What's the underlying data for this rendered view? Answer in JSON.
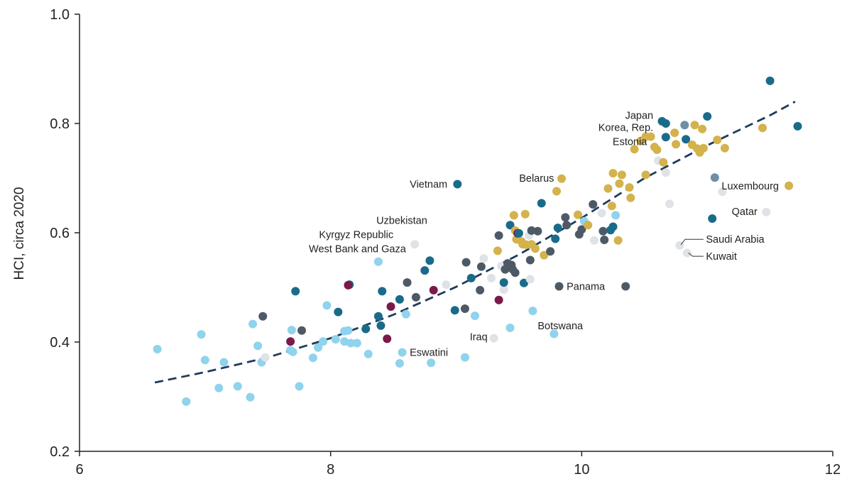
{
  "chart_data": {
    "type": "scatter",
    "ylabel": "HCI, circa 2020",
    "xlabel": "",
    "xlim": [
      6,
      12
    ],
    "ylim": [
      0.2,
      1.0
    ],
    "x_ticks": [
      "6",
      "8",
      "10",
      "12"
    ],
    "y_ticks": [
      "0.2",
      "0.4",
      "0.6",
      "0.8",
      "1.0"
    ],
    "grid": false,
    "colors": {
      "teal": "#1a6b8a",
      "gold": "#d4b24c",
      "lightblue": "#8fd3ec",
      "slate": "#4d5a66",
      "maroon": "#7a1a4a",
      "lightgray": "#dfe3e8",
      "bluegray": "#6f8fa6",
      "trend": "#1f3b5c"
    },
    "trend_line": {
      "style": "dashed",
      "points": [
        [
          6.6,
          0.326
        ],
        [
          7.0,
          0.345
        ],
        [
          7.5,
          0.372
        ],
        [
          8.0,
          0.407
        ],
        [
          8.5,
          0.45
        ],
        [
          9.0,
          0.501
        ],
        [
          9.5,
          0.56
        ],
        [
          10.0,
          0.627
        ],
        [
          10.5,
          0.7
        ],
        [
          11.0,
          0.76
        ],
        [
          11.5,
          0.815
        ],
        [
          11.7,
          0.84
        ]
      ]
    },
    "points": [
      {
        "x": 6.62,
        "y": 0.387,
        "c": "lightblue"
      },
      {
        "x": 6.85,
        "y": 0.291,
        "c": "lightblue"
      },
      {
        "x": 6.97,
        "y": 0.414,
        "c": "lightblue"
      },
      {
        "x": 7.0,
        "y": 0.367,
        "c": "lightblue"
      },
      {
        "x": 7.11,
        "y": 0.316,
        "c": "lightblue"
      },
      {
        "x": 7.15,
        "y": 0.363,
        "c": "lightblue"
      },
      {
        "x": 7.26,
        "y": 0.319,
        "c": "lightblue"
      },
      {
        "x": 7.36,
        "y": 0.299,
        "c": "lightblue"
      },
      {
        "x": 7.38,
        "y": 0.433,
        "c": "lightblue"
      },
      {
        "x": 7.42,
        "y": 0.393,
        "c": "lightblue"
      },
      {
        "x": 7.45,
        "y": 0.363,
        "c": "lightblue"
      },
      {
        "x": 7.46,
        "y": 0.447,
        "c": "slate"
      },
      {
        "x": 7.48,
        "y": 0.372,
        "c": "lightgray"
      },
      {
        "x": 7.68,
        "y": 0.385,
        "c": "lightblue"
      },
      {
        "x": 7.69,
        "y": 0.422,
        "c": "lightblue"
      },
      {
        "x": 7.7,
        "y": 0.382,
        "c": "lightblue"
      },
      {
        "x": 7.68,
        "y": 0.401,
        "c": "maroon"
      },
      {
        "x": 7.72,
        "y": 0.493,
        "c": "teal"
      },
      {
        "x": 7.75,
        "y": 0.319,
        "c": "lightblue"
      },
      {
        "x": 7.77,
        "y": 0.421,
        "c": "slate"
      },
      {
        "x": 7.86,
        "y": 0.371,
        "c": "lightblue"
      },
      {
        "x": 7.9,
        "y": 0.39,
        "c": "lightblue"
      },
      {
        "x": 7.94,
        "y": 0.401,
        "c": "lightblue"
      },
      {
        "x": 7.97,
        "y": 0.467,
        "c": "lightblue"
      },
      {
        "x": 8.04,
        "y": 0.405,
        "c": "lightblue"
      },
      {
        "x": 8.06,
        "y": 0.455,
        "c": "teal"
      },
      {
        "x": 8.11,
        "y": 0.401,
        "c": "lightblue"
      },
      {
        "x": 8.11,
        "y": 0.42,
        "c": "lightblue"
      },
      {
        "x": 8.14,
        "y": 0.421,
        "c": "lightblue"
      },
      {
        "x": 8.16,
        "y": 0.398,
        "c": "lightblue"
      },
      {
        "x": 8.15,
        "y": 0.505,
        "c": "teal"
      },
      {
        "x": 8.14,
        "y": 0.504,
        "c": "maroon"
      },
      {
        "x": 8.21,
        "y": 0.398,
        "c": "lightblue"
      },
      {
        "x": 8.28,
        "y": 0.424,
        "c": "teal"
      },
      {
        "x": 8.3,
        "y": 0.378,
        "c": "lightblue"
      },
      {
        "x": 8.38,
        "y": 0.447,
        "c": "teal"
      },
      {
        "x": 8.38,
        "y": 0.547,
        "c": "lightblue"
      },
      {
        "x": 8.4,
        "y": 0.43,
        "c": "teal"
      },
      {
        "x": 8.41,
        "y": 0.493,
        "c": "teal"
      },
      {
        "x": 8.45,
        "y": 0.406,
        "c": "maroon"
      },
      {
        "x": 8.48,
        "y": 0.465,
        "c": "maroon"
      },
      {
        "x": 8.55,
        "y": 0.361,
        "c": "lightblue"
      },
      {
        "x": 8.55,
        "y": 0.478,
        "c": "teal"
      },
      {
        "x": 8.57,
        "y": 0.381,
        "c": "lightblue"
      },
      {
        "x": 8.6,
        "y": 0.451,
        "c": "lightblue"
      },
      {
        "x": 8.61,
        "y": 0.509,
        "c": "slate"
      },
      {
        "x": 8.67,
        "y": 0.579,
        "c": "lightgray"
      },
      {
        "x": 8.68,
        "y": 0.482,
        "c": "slate"
      },
      {
        "x": 8.75,
        "y": 0.531,
        "c": "teal"
      },
      {
        "x": 8.79,
        "y": 0.549,
        "c": "teal"
      },
      {
        "x": 8.8,
        "y": 0.362,
        "c": "lightblue"
      },
      {
        "x": 8.82,
        "y": 0.495,
        "c": "maroon"
      },
      {
        "x": 8.92,
        "y": 0.505,
        "c": "lightgray"
      },
      {
        "x": 8.99,
        "y": 0.458,
        "c": "teal"
      },
      {
        "x": 9.01,
        "y": 0.689,
        "c": "teal"
      },
      {
        "x": 9.07,
        "y": 0.461,
        "c": "slate"
      },
      {
        "x": 9.07,
        "y": 0.372,
        "c": "lightblue"
      },
      {
        "x": 9.08,
        "y": 0.546,
        "c": "slate"
      },
      {
        "x": 9.12,
        "y": 0.517,
        "c": "teal"
      },
      {
        "x": 9.15,
        "y": 0.448,
        "c": "lightblue"
      },
      {
        "x": 9.19,
        "y": 0.495,
        "c": "slate"
      },
      {
        "x": 9.2,
        "y": 0.538,
        "c": "slate"
      },
      {
        "x": 9.22,
        "y": 0.553,
        "c": "lightgray"
      },
      {
        "x": 9.28,
        "y": 0.517,
        "c": "lightgray"
      },
      {
        "x": 9.3,
        "y": 0.407,
        "c": "lightgray"
      },
      {
        "x": 9.34,
        "y": 0.595,
        "c": "slate"
      },
      {
        "x": 9.33,
        "y": 0.567,
        "c": "gold"
      },
      {
        "x": 9.36,
        "y": 0.539,
        "c": "lightgray"
      },
      {
        "x": 9.34,
        "y": 0.477,
        "c": "maroon"
      },
      {
        "x": 9.38,
        "y": 0.496,
        "c": "lightgray"
      },
      {
        "x": 9.38,
        "y": 0.509,
        "c": "teal"
      },
      {
        "x": 9.39,
        "y": 0.533,
        "c": "slate"
      },
      {
        "x": 9.41,
        "y": 0.544,
        "c": "slate"
      },
      {
        "x": 9.43,
        "y": 0.614,
        "c": "teal"
      },
      {
        "x": 9.43,
        "y": 0.426,
        "c": "lightblue"
      },
      {
        "x": 9.44,
        "y": 0.541,
        "c": "slate"
      },
      {
        "x": 9.45,
        "y": 0.533,
        "c": "slate"
      },
      {
        "x": 9.47,
        "y": 0.527,
        "c": "slate"
      },
      {
        "x": 9.46,
        "y": 0.632,
        "c": "gold"
      },
      {
        "x": 9.47,
        "y": 0.604,
        "c": "gold"
      },
      {
        "x": 9.48,
        "y": 0.588,
        "c": "gold"
      },
      {
        "x": 9.49,
        "y": 0.599,
        "c": "maroon"
      },
      {
        "x": 9.5,
        "y": 0.599,
        "c": "teal"
      },
      {
        "x": 9.52,
        "y": 0.584,
        "c": "gold"
      },
      {
        "x": 9.53,
        "y": 0.579,
        "c": "gold"
      },
      {
        "x": 9.54,
        "y": 0.508,
        "c": "teal"
      },
      {
        "x": 9.55,
        "y": 0.634,
        "c": "gold"
      },
      {
        "x": 9.56,
        "y": 0.578,
        "c": "gold"
      },
      {
        "x": 9.58,
        "y": 0.595,
        "c": "lightgray"
      },
      {
        "x": 9.59,
        "y": 0.55,
        "c": "slate"
      },
      {
        "x": 9.59,
        "y": 0.515,
        "c": "lightgray"
      },
      {
        "x": 9.6,
        "y": 0.579,
        "c": "gold"
      },
      {
        "x": 9.6,
        "y": 0.604,
        "c": "slate"
      },
      {
        "x": 9.61,
        "y": 0.457,
        "c": "lightblue"
      },
      {
        "x": 9.63,
        "y": 0.571,
        "c": "gold"
      },
      {
        "x": 9.65,
        "y": 0.603,
        "c": "slate"
      },
      {
        "x": 9.68,
        "y": 0.654,
        "c": "teal"
      },
      {
        "x": 9.7,
        "y": 0.559,
        "c": "gold"
      },
      {
        "x": 9.75,
        "y": 0.566,
        "c": "slate"
      },
      {
        "x": 9.78,
        "y": 0.415,
        "c": "lightblue"
      },
      {
        "x": 9.79,
        "y": 0.589,
        "c": "teal"
      },
      {
        "x": 9.8,
        "y": 0.676,
        "c": "gold"
      },
      {
        "x": 9.81,
        "y": 0.609,
        "c": "teal"
      },
      {
        "x": 9.82,
        "y": 0.502,
        "c": "slate"
      },
      {
        "x": 9.84,
        "y": 0.699,
        "c": "gold"
      },
      {
        "x": 9.87,
        "y": 0.628,
        "c": "slate"
      },
      {
        "x": 9.88,
        "y": 0.614,
        "c": "slate"
      },
      {
        "x": 9.97,
        "y": 0.633,
        "c": "gold"
      },
      {
        "x": 9.98,
        "y": 0.597,
        "c": "slate"
      },
      {
        "x": 10.0,
        "y": 0.606,
        "c": "slate"
      },
      {
        "x": 10.02,
        "y": 0.621,
        "c": "lightblue"
      },
      {
        "x": 10.05,
        "y": 0.614,
        "c": "gold"
      },
      {
        "x": 10.09,
        "y": 0.652,
        "c": "slate"
      },
      {
        "x": 10.1,
        "y": 0.586,
        "c": "lightgray"
      },
      {
        "x": 10.16,
        "y": 0.636,
        "c": "lightgray"
      },
      {
        "x": 10.17,
        "y": 0.603,
        "c": "slate"
      },
      {
        "x": 10.18,
        "y": 0.587,
        "c": "slate"
      },
      {
        "x": 10.21,
        "y": 0.681,
        "c": "gold"
      },
      {
        "x": 10.23,
        "y": 0.605,
        "c": "teal"
      },
      {
        "x": 10.24,
        "y": 0.649,
        "c": "gold"
      },
      {
        "x": 10.25,
        "y": 0.709,
        "c": "gold"
      },
      {
        "x": 10.25,
        "y": 0.611,
        "c": "teal"
      },
      {
        "x": 10.27,
        "y": 0.632,
        "c": "lightblue"
      },
      {
        "x": 10.29,
        "y": 0.586,
        "c": "gold"
      },
      {
        "x": 10.3,
        "y": 0.69,
        "c": "gold"
      },
      {
        "x": 10.32,
        "y": 0.706,
        "c": "gold"
      },
      {
        "x": 10.35,
        "y": 0.502,
        "c": "slate"
      },
      {
        "x": 10.38,
        "y": 0.683,
        "c": "gold"
      },
      {
        "x": 10.39,
        "y": 0.664,
        "c": "gold"
      },
      {
        "x": 10.42,
        "y": 0.753,
        "c": "gold"
      },
      {
        "x": 10.47,
        "y": 0.768,
        "c": "gold"
      },
      {
        "x": 10.51,
        "y": 0.776,
        "c": "gold"
      },
      {
        "x": 10.51,
        "y": 0.706,
        "c": "gold"
      },
      {
        "x": 10.55,
        "y": 0.776,
        "c": "gold"
      },
      {
        "x": 10.58,
        "y": 0.757,
        "c": "gold"
      },
      {
        "x": 10.6,
        "y": 0.752,
        "c": "gold"
      },
      {
        "x": 10.61,
        "y": 0.732,
        "c": "lightgray"
      },
      {
        "x": 10.64,
        "y": 0.804,
        "c": "teal"
      },
      {
        "x": 10.65,
        "y": 0.729,
        "c": "gold"
      },
      {
        "x": 10.67,
        "y": 0.8,
        "c": "teal"
      },
      {
        "x": 10.67,
        "y": 0.775,
        "c": "teal"
      },
      {
        "x": 10.67,
        "y": 0.71,
        "c": "lightgray"
      },
      {
        "x": 10.7,
        "y": 0.653,
        "c": "lightgray"
      },
      {
        "x": 10.74,
        "y": 0.783,
        "c": "gold"
      },
      {
        "x": 10.75,
        "y": 0.762,
        "c": "gold"
      },
      {
        "x": 10.78,
        "y": 0.577,
        "c": "lightgray"
      },
      {
        "x": 10.82,
        "y": 0.797,
        "c": "bluegray"
      },
      {
        "x": 10.83,
        "y": 0.771,
        "c": "teal"
      },
      {
        "x": 10.84,
        "y": 0.563,
        "c": "lightgray"
      },
      {
        "x": 10.88,
        "y": 0.761,
        "c": "gold"
      },
      {
        "x": 10.9,
        "y": 0.797,
        "c": "gold"
      },
      {
        "x": 10.92,
        "y": 0.754,
        "c": "gold"
      },
      {
        "x": 10.94,
        "y": 0.747,
        "c": "gold"
      },
      {
        "x": 10.96,
        "y": 0.79,
        "c": "gold"
      },
      {
        "x": 10.97,
        "y": 0.755,
        "c": "gold"
      },
      {
        "x": 11.0,
        "y": 0.813,
        "c": "teal"
      },
      {
        "x": 11.04,
        "y": 0.626,
        "c": "teal"
      },
      {
        "x": 11.06,
        "y": 0.701,
        "c": "bluegray"
      },
      {
        "x": 11.08,
        "y": 0.77,
        "c": "gold"
      },
      {
        "x": 11.12,
        "y": 0.675,
        "c": "lightgray"
      },
      {
        "x": 11.14,
        "y": 0.755,
        "c": "gold"
      },
      {
        "x": 11.44,
        "y": 0.792,
        "c": "gold"
      },
      {
        "x": 11.47,
        "y": 0.638,
        "c": "lightgray"
      },
      {
        "x": 11.5,
        "y": 0.878,
        "c": "teal"
      },
      {
        "x": 11.65,
        "y": 0.686,
        "c": "gold"
      },
      {
        "x": 11.72,
        "y": 0.795,
        "c": "teal"
      }
    ],
    "annotations": [
      {
        "text": "Japan",
        "x": 10.57,
        "y": 0.815,
        "anchor": "end"
      },
      {
        "text": "Korea, Rep.",
        "x": 10.57,
        "y": 0.793,
        "anchor": "end"
      },
      {
        "text": "Estonia",
        "x": 10.52,
        "y": 0.767,
        "anchor": "end"
      },
      {
        "text": "Belarus",
        "x": 9.78,
        "y": 0.7,
        "anchor": "end"
      },
      {
        "text": "Vietnam",
        "x": 8.93,
        "y": 0.689,
        "anchor": "end"
      },
      {
        "text": "Uzbekistan",
        "x": 8.77,
        "y": 0.623,
        "anchor": "end"
      },
      {
        "text": "Kyrgyz Republic",
        "x": 8.5,
        "y": 0.597,
        "anchor": "end"
      },
      {
        "text": "West Bank and Gaza",
        "x": 8.6,
        "y": 0.571,
        "anchor": "end"
      },
      {
        "text": "Luxembourg",
        "x": 11.57,
        "y": 0.686,
        "anchor": "end"
      },
      {
        "text": "Qatar",
        "x": 11.4,
        "y": 0.639,
        "anchor": "end"
      },
      {
        "text": "Saudi Arabia",
        "x": 10.99,
        "y": 0.588,
        "anchor": "start"
      },
      {
        "text": "Kuwait",
        "x": 10.99,
        "y": 0.557,
        "anchor": "start"
      },
      {
        "text": "Panama",
        "x": 9.88,
        "y": 0.502,
        "anchor": "start"
      },
      {
        "text": "Botswana",
        "x": 9.65,
        "y": 0.43,
        "anchor": "start"
      },
      {
        "text": "Iraq",
        "x": 9.25,
        "y": 0.41,
        "anchor": "end"
      },
      {
        "text": "Eswatini",
        "x": 8.63,
        "y": 0.381,
        "anchor": "start"
      }
    ],
    "leader_lines": [
      {
        "from": [
          10.79,
          0.578
        ],
        "to": [
          10.97,
          0.588
        ],
        "label": "Saudi Arabia"
      },
      {
        "from": [
          10.85,
          0.563
        ],
        "to": [
          10.97,
          0.557
        ],
        "label": "Kuwait"
      }
    ]
  }
}
